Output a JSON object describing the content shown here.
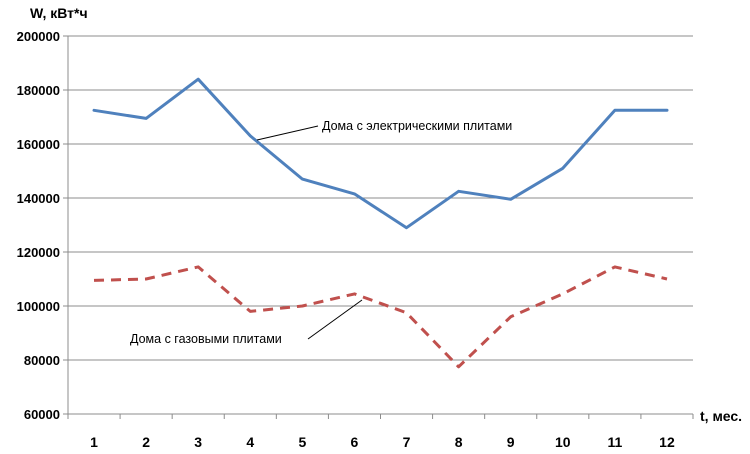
{
  "chart_data": {
    "type": "line",
    "ylabel": "W, кВт*ч",
    "xlabel": "t, мес.",
    "x": [
      1,
      2,
      3,
      4,
      5,
      6,
      7,
      8,
      9,
      10,
      11,
      12
    ],
    "ylim": [
      60000,
      200000
    ],
    "yticks": [
      60000,
      80000,
      100000,
      120000,
      140000,
      160000,
      180000,
      200000
    ],
    "ytick_labels": [
      "60000",
      "80000",
      "100000",
      "120000",
      "140000",
      "160000",
      "180000",
      "200000"
    ],
    "xtick_labels": [
      "1",
      "2",
      "3",
      "4",
      "5",
      "6",
      "7",
      "8",
      "9",
      "10",
      "11",
      "12"
    ],
    "grid": "horizontal",
    "series": [
      {
        "name": "Дома с электрическими плитами",
        "values": [
          172500,
          169500,
          184000,
          163000,
          147000,
          141500,
          129000,
          142500,
          139500,
          151000,
          172500,
          172500
        ],
        "color": "#4f81bd",
        "style": "solid"
      },
      {
        "name": "Дома с газовыми плитами",
        "values": [
          109500,
          110000,
          114500,
          98000,
          100000,
          104500,
          97500,
          77500,
          96000,
          104500,
          114500,
          110000
        ],
        "color": "#c0504d",
        "style": "dashed"
      }
    ],
    "annotations": [
      {
        "text": "Дома с электрическими плитами",
        "series": 0
      },
      {
        "text": "Дома с газовыми плитами",
        "series": 1
      }
    ]
  }
}
